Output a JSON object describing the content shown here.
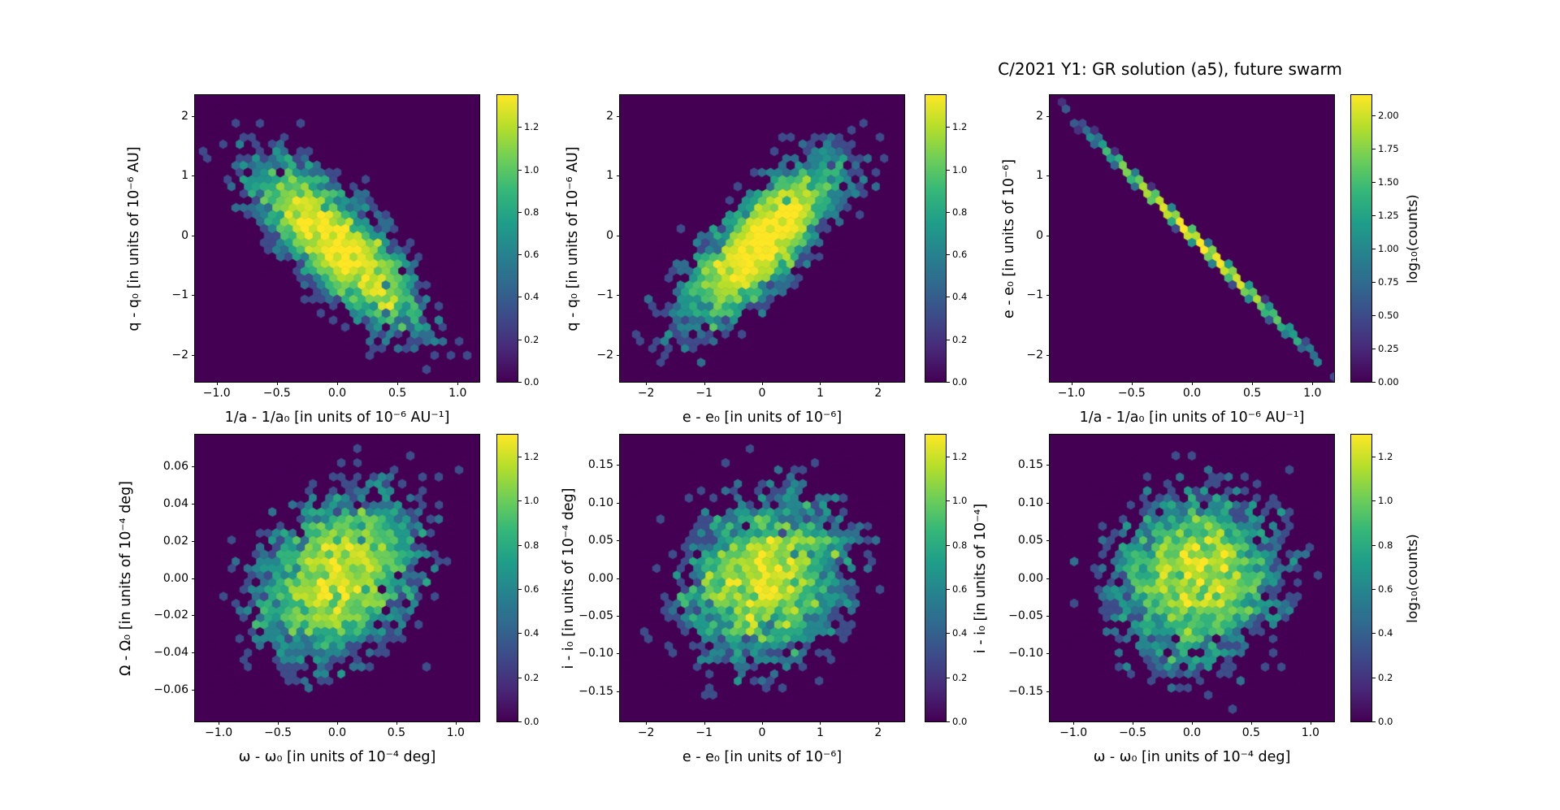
{
  "title": "C/2021 Y1: GR solution (a5), future swarm",
  "colormap": {
    "name": "viridis",
    "background": "#440154",
    "stops": [
      "#440154",
      "#482878",
      "#3e4a89",
      "#31688e",
      "#26828e",
      "#1f9e89",
      "#35b779",
      "#6ece58",
      "#b5de2b",
      "#fde725"
    ]
  },
  "chart_data": [
    {
      "name": "q-vs-inv-a",
      "type": "hexbin",
      "xlabel": "1/a - 1/a₀ [in units of 10⁻⁶ AU⁻¹]",
      "ylabel": "q - q₀ [in units of 10⁻⁶ AU]",
      "xlim": [
        -1.18,
        1.18
      ],
      "ylim": [
        -2.45,
        2.35
      ],
      "xticks": [
        -1.0,
        -0.5,
        0.0,
        0.5,
        1.0
      ],
      "xtick_labels": [
        "−1.0",
        "−0.5",
        "0.0",
        "0.5",
        "1.0"
      ],
      "yticks": [
        2,
        1,
        0,
        -1,
        -2
      ],
      "ytick_labels": [
        "2",
        "1",
        "0",
        "−1",
        "−2"
      ],
      "distribution": {
        "center_x": 0.0,
        "center_y": -0.15,
        "sigma_x": 0.37,
        "sigma_y": 0.75,
        "rho": -0.78,
        "n_points": 3500
      },
      "colorbar": {
        "vmin": 0.0,
        "vmax": 1.35,
        "ticks": [
          0.0,
          0.2,
          0.4,
          0.6,
          0.8,
          1.0,
          1.2
        ],
        "tick_labels": [
          "0.0",
          "0.2",
          "0.4",
          "0.6",
          "0.8",
          "1.0",
          "1.2"
        ],
        "label": ""
      }
    },
    {
      "name": "q-vs-e",
      "type": "hexbin",
      "xlabel": "e - e₀ [in units of 10⁻⁶]",
      "ylabel": "q - q₀ [in units of 10⁻⁶ AU]",
      "xlim": [
        -2.45,
        2.45
      ],
      "ylim": [
        -2.45,
        2.35
      ],
      "xticks": [
        -2,
        -1,
        0,
        1,
        2
      ],
      "xtick_labels": [
        "−2",
        "−1",
        "0",
        "1",
        "2"
      ],
      "yticks": [
        2,
        1,
        0,
        -1,
        -2
      ],
      "ytick_labels": [
        "2",
        "1",
        "0",
        "−1",
        "−2"
      ],
      "distribution": {
        "center_x": 0.0,
        "center_y": -0.1,
        "sigma_x": 0.75,
        "sigma_y": 0.75,
        "rho": 0.78,
        "n_points": 3500
      },
      "colorbar": {
        "vmin": 0.0,
        "vmax": 1.35,
        "ticks": [
          0.0,
          0.2,
          0.4,
          0.6,
          0.8,
          1.0,
          1.2
        ],
        "tick_labels": [
          "0.0",
          "0.2",
          "0.4",
          "0.6",
          "0.8",
          "1.0",
          "1.2"
        ],
        "label": ""
      }
    },
    {
      "name": "e-vs-inv-a",
      "type": "hexbin",
      "xlabel": "1/a - 1/a₀ [in units of 10⁻⁶ AU⁻¹]",
      "ylabel": "e - e₀ [in units of 10⁻⁶]",
      "xlim": [
        -1.18,
        1.18
      ],
      "ylim": [
        -2.45,
        2.35
      ],
      "xticks": [
        -1.0,
        -0.5,
        0.0,
        0.5,
        1.0
      ],
      "xtick_labels": [
        "−1.0",
        "−0.5",
        "0.0",
        "0.5",
        "1.0"
      ],
      "yticks": [
        2,
        1,
        0,
        -1,
        -2
      ],
      "ytick_labels": [
        "2",
        "1",
        "0",
        "−1",
        "−2"
      ],
      "distribution": {
        "center_x": 0.05,
        "center_y": -0.1,
        "sigma_x": 0.4,
        "sigma_y": 0.8,
        "rho": -0.9995,
        "n_points": 3000
      },
      "colorbar": {
        "vmin": 0.0,
        "vmax": 2.15,
        "ticks": [
          0.0,
          0.25,
          0.5,
          0.75,
          1.0,
          1.25,
          1.5,
          1.75,
          2.0
        ],
        "tick_labels": [
          "0.00",
          "0.25",
          "0.50",
          "0.75",
          "1.00",
          "1.25",
          "1.50",
          "1.75",
          "2.00"
        ],
        "label": "log₁₀(counts)"
      }
    },
    {
      "name": "node-vs-argperi",
      "type": "hexbin",
      "xlabel": "ω - ω₀ [in units of 10⁻⁴ deg]",
      "ylabel": "Ω - Ω₀ [in units of 10⁻⁴ deg]",
      "xlim": [
        -1.2,
        1.2
      ],
      "ylim": [
        -0.077,
        0.077
      ],
      "xticks": [
        -1.0,
        -0.5,
        0.0,
        0.5,
        1.0
      ],
      "xtick_labels": [
        "−1.0",
        "−0.5",
        "0.0",
        "0.5",
        "1.0"
      ],
      "yticks": [
        0.06,
        0.04,
        0.02,
        0.0,
        -0.02,
        -0.04,
        -0.06
      ],
      "ytick_labels": [
        "0.06",
        "0.04",
        "0.02",
        "0.00",
        "−0.02",
        "−0.04",
        "−0.06"
      ],
      "distribution": {
        "center_x": 0.0,
        "center_y": 0.0,
        "sigma_x": 0.37,
        "sigma_y": 0.024,
        "rho": 0.3,
        "n_points": 3500
      },
      "colorbar": {
        "vmin": 0.0,
        "vmax": 1.3,
        "ticks": [
          0.0,
          0.2,
          0.4,
          0.6,
          0.8,
          1.0,
          1.2
        ],
        "tick_labels": [
          "0.0",
          "0.2",
          "0.4",
          "0.6",
          "0.8",
          "1.0",
          "1.2"
        ],
        "label": ""
      }
    },
    {
      "name": "incl-vs-e",
      "type": "hexbin",
      "xlabel": "e - e₀ [in units of 10⁻⁶]",
      "ylabel": "i - i₀ [in units of 10⁻⁴ deg]",
      "xlim": [
        -2.45,
        2.45
      ],
      "ylim": [
        -0.19,
        0.19
      ],
      "xticks": [
        -2,
        -1,
        0,
        1,
        2
      ],
      "xtick_labels": [
        "−2",
        "−1",
        "0",
        "1",
        "2"
      ],
      "yticks": [
        0.15,
        0.1,
        0.05,
        0.0,
        -0.05,
        -0.1,
        -0.15
      ],
      "ytick_labels": [
        "0.15",
        "0.10",
        "0.05",
        "0.00",
        "−0.05",
        "−0.10",
        "−0.15"
      ],
      "distribution": {
        "center_x": 0.05,
        "center_y": 0.0,
        "sigma_x": 0.75,
        "sigma_y": 0.058,
        "rho": 0.15,
        "n_points": 3500
      },
      "colorbar": {
        "vmin": 0.0,
        "vmax": 1.3,
        "ticks": [
          0.0,
          0.2,
          0.4,
          0.6,
          0.8,
          1.0,
          1.2
        ],
        "tick_labels": [
          "0.0",
          "0.2",
          "0.4",
          "0.6",
          "0.8",
          "1.0",
          "1.2"
        ],
        "label": ""
      }
    },
    {
      "name": "incl-vs-argperi",
      "type": "hexbin",
      "xlabel": "ω - ω₀ [in units of 10⁻⁴ deg]",
      "ylabel": "i - i₀ [in units of 10⁻⁴]",
      "xlim": [
        -1.2,
        1.2
      ],
      "ylim": [
        -0.19,
        0.19
      ],
      "xticks": [
        -1.0,
        -0.5,
        0.0,
        0.5,
        1.0
      ],
      "xtick_labels": [
        "−1.0",
        "−0.5",
        "0.0",
        "0.5",
        "1.0"
      ],
      "yticks": [
        0.15,
        0.1,
        0.05,
        0.0,
        -0.05,
        -0.1,
        -0.15
      ],
      "ytick_labels": [
        "0.15",
        "0.10",
        "0.05",
        "0.00",
        "−0.05",
        "−0.10",
        "−0.15"
      ],
      "distribution": {
        "center_x": 0.05,
        "center_y": 0.0,
        "sigma_x": 0.37,
        "sigma_y": 0.058,
        "rho": 0.1,
        "n_points": 3500
      },
      "colorbar": {
        "vmin": 0.0,
        "vmax": 1.3,
        "ticks": [
          0.0,
          0.2,
          0.4,
          0.6,
          0.8,
          1.0,
          1.2
        ],
        "tick_labels": [
          "0.0",
          "0.2",
          "0.4",
          "0.6",
          "0.8",
          "1.0",
          "1.2"
        ],
        "label": "log₁₀(counts)"
      }
    }
  ]
}
